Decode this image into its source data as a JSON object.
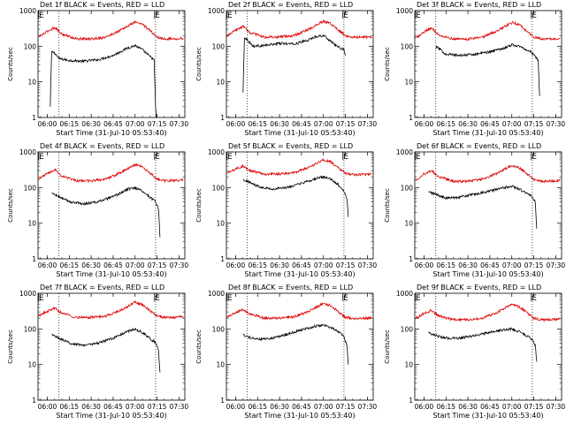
{
  "colors": {
    "events": "#000000",
    "lld": "#dd0000",
    "axis": "#000000",
    "background": "#ffffff"
  },
  "chart_data": [
    {
      "type": "line",
      "title": "Det 1f BLACK = Events, RED = LLD",
      "xlabel": "Start Time (31-Jul-10 05:53:40)",
      "ylabel": "Counts/sec",
      "xlim": [
        "05:53:40",
        "07:34"
      ],
      "ylim": [
        1,
        1000
      ],
      "yscale": "log",
      "xticks": [
        "06:00",
        "06:15",
        "06:30",
        "06:45",
        "07:00",
        "07:15",
        "07:30"
      ],
      "yticks": [
        "1",
        "10",
        "100",
        "1000"
      ],
      "marker_label": "E",
      "marker_times": [
        "05:53:40",
        "07:13"
      ],
      "vlines": [
        "06:08",
        "07:14"
      ],
      "grid": false,
      "series": [
        {
          "name": "Events",
          "color": "#000000",
          "x": [
            "06:02",
            "06:03",
            "06:05",
            "06:08",
            "06:15",
            "06:25",
            "06:35",
            "06:45",
            "06:55",
            "07:00",
            "07:05",
            "07:10",
            "07:12",
            "07:13",
            "07:14",
            "07:14:30"
          ],
          "y": [
            2,
            70,
            65,
            45,
            40,
            38,
            42,
            55,
            90,
            105,
            80,
            52,
            45,
            40,
            2,
            1
          ]
        },
        {
          "name": "LLD",
          "color": "#dd0000",
          "x": [
            "05:54",
            "06:00",
            "06:05",
            "06:10",
            "06:20",
            "06:30",
            "06:40",
            "06:50",
            "07:00",
            "07:05",
            "07:10",
            "07:15",
            "07:20",
            "07:30",
            "07:33"
          ],
          "y": [
            180,
            260,
            340,
            220,
            160,
            160,
            180,
            280,
            480,
            420,
            280,
            180,
            160,
            165,
            170
          ]
        }
      ]
    },
    {
      "type": "line",
      "title": "Det 2f BLACK = Events, RED = LLD",
      "xlabel": "Start Time (31-Jul-10 05:53:40)",
      "ylabel": "Counts/sec",
      "xlim": [
        "05:53:40",
        "07:34"
      ],
      "ylim": [
        1,
        1000
      ],
      "yscale": "log",
      "xticks": [
        "06:00",
        "06:15",
        "06:30",
        "06:45",
        "07:00",
        "07:15",
        "07:30"
      ],
      "yticks": [
        "1",
        "10",
        "100",
        "1000"
      ],
      "marker_label": "E",
      "marker_times": [
        "05:53:40",
        "07:13"
      ],
      "vlines": [
        "06:08",
        "07:14"
      ],
      "grid": false,
      "series": [
        {
          "name": "Events",
          "color": "#000000",
          "x": [
            "06:05",
            "06:06",
            "06:08",
            "06:12",
            "06:20",
            "06:30",
            "06:40",
            "06:50",
            "06:55",
            "07:00",
            "07:05",
            "07:10",
            "07:14",
            "07:15"
          ],
          "y": [
            5,
            180,
            150,
            100,
            105,
            120,
            115,
            150,
            190,
            200,
            140,
            95,
            80,
            55
          ]
        },
        {
          "name": "LLD",
          "color": "#dd0000",
          "x": [
            "05:54",
            "06:00",
            "06:05",
            "06:10",
            "06:20",
            "06:30",
            "06:40",
            "06:50",
            "07:00",
            "07:05",
            "07:10",
            "07:15",
            "07:20",
            "07:30",
            "07:33"
          ],
          "y": [
            190,
            280,
            360,
            240,
            180,
            180,
            200,
            300,
            500,
            430,
            290,
            200,
            180,
            180,
            180
          ]
        }
      ]
    },
    {
      "type": "line",
      "title": "Det 3f BLACK = Events, RED = LLD",
      "xlabel": "Start Time (31-Jul-10 05:53:40)",
      "ylabel": "Counts/sec",
      "xlim": [
        "05:53:40",
        "07:34"
      ],
      "ylim": [
        1,
        1000
      ],
      "yscale": "log",
      "xticks": [
        "06:00",
        "06:15",
        "06:30",
        "06:45",
        "07:00",
        "07:15",
        "07:30"
      ],
      "yticks": [
        "1",
        "10",
        "100",
        "1000"
      ],
      "marker_label": "E",
      "marker_times": [
        "05:53:40",
        "07:13"
      ],
      "vlines": [
        "06:08",
        "07:14"
      ],
      "grid": false,
      "series": [
        {
          "name": "Events",
          "color": "#000000",
          "x": [
            "06:08",
            "06:15",
            "06:25",
            "06:35",
            "06:45",
            "06:55",
            "07:00",
            "07:05",
            "07:10",
            "07:15",
            "07:18",
            "07:19"
          ],
          "y": [
            100,
            60,
            55,
            60,
            70,
            90,
            110,
            100,
            80,
            60,
            40,
            4
          ]
        },
        {
          "name": "LLD",
          "color": "#dd0000",
          "x": [
            "05:54",
            "06:00",
            "06:05",
            "06:10",
            "06:20",
            "06:30",
            "06:40",
            "06:50",
            "07:00",
            "07:05",
            "07:10",
            "07:15",
            "07:20",
            "07:30",
            "07:33"
          ],
          "y": [
            170,
            250,
            330,
            210,
            160,
            160,
            180,
            270,
            460,
            400,
            270,
            180,
            160,
            165,
            170
          ]
        }
      ]
    },
    {
      "type": "line",
      "title": "Det 4f BLACK = Events, RED = LLD",
      "xlabel": "Start Time (31-Jul-10 05:53:40)",
      "ylabel": "Counts/sec",
      "xlim": [
        "05:53:40",
        "07:34"
      ],
      "ylim": [
        1,
        1000
      ],
      "yscale": "log",
      "xticks": [
        "06:00",
        "06:15",
        "06:30",
        "06:45",
        "07:00",
        "07:15",
        "07:30"
      ],
      "yticks": [
        "1",
        "10",
        "100",
        "1000"
      ],
      "marker_label": "E",
      "marker_times": [
        "05:53:40",
        "07:13"
      ],
      "vlines": [
        "06:08",
        "07:14"
      ],
      "grid": false,
      "series": [
        {
          "name": "Events",
          "color": "#000000",
          "x": [
            "06:03",
            "06:08",
            "06:15",
            "06:25",
            "06:35",
            "06:45",
            "06:55",
            "07:00",
            "07:05",
            "07:10",
            "07:14",
            "07:16",
            "07:17"
          ],
          "y": [
            70,
            55,
            40,
            35,
            40,
            55,
            90,
            100,
            80,
            55,
            40,
            25,
            4
          ]
        },
        {
          "name": "LLD",
          "color": "#dd0000",
          "x": [
            "05:54",
            "06:00",
            "06:05",
            "06:10",
            "06:20",
            "06:30",
            "06:40",
            "06:50",
            "07:00",
            "07:05",
            "07:10",
            "07:15",
            "07:20",
            "07:30",
            "07:33"
          ],
          "y": [
            170,
            250,
            320,
            210,
            155,
            155,
            175,
            260,
            440,
            380,
            260,
            175,
            155,
            160,
            165
          ]
        }
      ]
    },
    {
      "type": "line",
      "title": "Det 5f BLACK = Events, RED = LLD",
      "xlabel": "Start Time (31-Jul-10 05:53:40)",
      "ylabel": "Counts/sec",
      "xlim": [
        "05:53:40",
        "07:34"
      ],
      "ylim": [
        1,
        1000
      ],
      "yscale": "log",
      "xticks": [
        "06:00",
        "06:15",
        "06:30",
        "06:45",
        "07:00",
        "07:15",
        "07:30"
      ],
      "yticks": [
        "1",
        "10",
        "100",
        "1000"
      ],
      "marker_label": "E",
      "marker_times": [
        "05:53:40",
        "07:13"
      ],
      "vlines": [
        "06:08",
        "07:14"
      ],
      "grid": false,
      "series": [
        {
          "name": "Events",
          "color": "#000000",
          "x": [
            "06:05",
            "06:08",
            "06:15",
            "06:25",
            "06:35",
            "06:45",
            "06:55",
            "07:00",
            "07:05",
            "07:10",
            "07:14",
            "07:16",
            "07:17"
          ],
          "y": [
            170,
            150,
            110,
            90,
            100,
            130,
            180,
            200,
            170,
            120,
            80,
            50,
            15
          ]
        },
        {
          "name": "LLD",
          "color": "#dd0000",
          "x": [
            "05:54",
            "06:00",
            "06:05",
            "06:10",
            "06:20",
            "06:30",
            "06:40",
            "06:50",
            "07:00",
            "07:05",
            "07:10",
            "07:15",
            "07:20",
            "07:30",
            "07:33"
          ],
          "y": [
            250,
            330,
            400,
            300,
            240,
            240,
            260,
            370,
            600,
            520,
            360,
            250,
            230,
            235,
            240
          ]
        }
      ]
    },
    {
      "type": "line",
      "title": "Det 6f BLACK = Events, RED = LLD",
      "xlabel": "Start Time (31-Jul-10 05:53:40)",
      "ylabel": "Counts/sec",
      "xlim": [
        "05:53:40",
        "07:34"
      ],
      "ylim": [
        1,
        1000
      ],
      "yscale": "log",
      "xticks": [
        "06:00",
        "06:15",
        "06:30",
        "06:45",
        "07:00",
        "07:15",
        "07:30"
      ],
      "yticks": [
        "1",
        "10",
        "100",
        "1000"
      ],
      "marker_label": "E",
      "marker_times": [
        "05:53:40",
        "07:13"
      ],
      "vlines": [
        "06:08",
        "07:14"
      ],
      "grid": false,
      "series": [
        {
          "name": "Events",
          "color": "#000000",
          "x": [
            "06:03",
            "06:08",
            "06:15",
            "06:25",
            "06:35",
            "06:45",
            "06:55",
            "07:00",
            "07:05",
            "07:10",
            "07:14",
            "07:16",
            "07:17"
          ],
          "y": [
            75,
            65,
            50,
            55,
            65,
            80,
            100,
            110,
            90,
            70,
            55,
            40,
            7
          ]
        },
        {
          "name": "LLD",
          "color": "#dd0000",
          "x": [
            "05:54",
            "06:00",
            "06:05",
            "06:10",
            "06:20",
            "06:30",
            "06:40",
            "06:50",
            "07:00",
            "07:05",
            "07:10",
            "07:15",
            "07:20",
            "07:30",
            "07:33"
          ],
          "y": [
            160,
            240,
            300,
            200,
            150,
            150,
            170,
            250,
            420,
            360,
            250,
            170,
            150,
            155,
            160
          ]
        }
      ]
    },
    {
      "type": "line",
      "title": "Det 7f BLACK = Events, RED = LLD",
      "xlabel": "Start Time (31-Jul-10 05:53:40)",
      "ylabel": "Counts/sec",
      "xlim": [
        "05:53:40",
        "07:34"
      ],
      "ylim": [
        1,
        1000
      ],
      "yscale": "log",
      "xticks": [
        "06:00",
        "06:15",
        "06:30",
        "06:45",
        "07:00",
        "07:15",
        "07:30"
      ],
      "yticks": [
        "1",
        "10",
        "100",
        "1000"
      ],
      "marker_label": "E",
      "marker_times": [
        "05:53:40",
        "07:13"
      ],
      "vlines": [
        "06:08",
        "07:14"
      ],
      "grid": false,
      "series": [
        {
          "name": "Events",
          "color": "#000000",
          "x": [
            "06:03",
            "06:08",
            "06:15",
            "06:25",
            "06:35",
            "06:45",
            "06:55",
            "07:00",
            "07:05",
            "07:10",
            "07:14",
            "07:16",
            "07:17"
          ],
          "y": [
            70,
            55,
            40,
            35,
            40,
            55,
            85,
            100,
            80,
            55,
            40,
            25,
            6
          ]
        },
        {
          "name": "LLD",
          "color": "#dd0000",
          "x": [
            "05:54",
            "06:00",
            "06:05",
            "06:10",
            "06:20",
            "06:30",
            "06:40",
            "06:50",
            "07:00",
            "07:05",
            "07:10",
            "07:15",
            "07:20",
            "07:30",
            "07:33"
          ],
          "y": [
            230,
            310,
            380,
            280,
            210,
            210,
            230,
            330,
            560,
            480,
            330,
            230,
            210,
            215,
            220
          ]
        }
      ]
    },
    {
      "type": "line",
      "title": "Det 8f BLACK = Events, RED = LLD",
      "xlabel": "Start Time (31-Jul-10 05:53:40)",
      "ylabel": "Counts/sec",
      "xlim": [
        "05:53:40",
        "07:34"
      ],
      "ylim": [
        1,
        1000
      ],
      "yscale": "log",
      "xticks": [
        "06:00",
        "06:15",
        "06:30",
        "06:45",
        "07:00",
        "07:15",
        "07:30"
      ],
      "yticks": [
        "1",
        "10",
        "100",
        "1000"
      ],
      "marker_label": "E",
      "marker_times": [
        "05:53:40",
        "07:13"
      ],
      "vlines": [
        "06:08",
        "07:14"
      ],
      "grid": false,
      "series": [
        {
          "name": "Events",
          "color": "#000000",
          "x": [
            "06:05",
            "06:08",
            "06:15",
            "06:25",
            "06:35",
            "06:45",
            "06:55",
            "07:00",
            "07:05",
            "07:10",
            "07:14",
            "07:16",
            "07:17"
          ],
          "y": [
            70,
            60,
            50,
            55,
            70,
            95,
            120,
            130,
            110,
            85,
            60,
            35,
            10
          ]
        },
        {
          "name": "LLD",
          "color": "#dd0000",
          "x": [
            "05:54",
            "06:00",
            "06:05",
            "06:10",
            "06:20",
            "06:30",
            "06:40",
            "06:50",
            "07:00",
            "07:05",
            "07:10",
            "07:15",
            "07:20",
            "07:30",
            "07:33"
          ],
          "y": [
            210,
            290,
            350,
            260,
            200,
            200,
            220,
            310,
            520,
            450,
            310,
            210,
            195,
            200,
            205
          ]
        }
      ]
    },
    {
      "type": "line",
      "title": "Det 9f BLACK = Events, RED = LLD",
      "xlabel": "Start Time (31-Jul-10 05:53:40)",
      "ylabel": "Counts/sec",
      "xlim": [
        "05:53:40",
        "07:34"
      ],
      "ylim": [
        1,
        1000
      ],
      "yscale": "log",
      "xticks": [
        "06:00",
        "06:15",
        "06:30",
        "06:45",
        "07:00",
        "07:15",
        "07:30"
      ],
      "yticks": [
        "1",
        "10",
        "100",
        "1000"
      ],
      "marker_label": "E",
      "marker_times": [
        "05:53:40",
        "07:13"
      ],
      "vlines": [
        "06:08",
        "07:14"
      ],
      "grid": false,
      "series": [
        {
          "name": "Events",
          "color": "#000000",
          "x": [
            "06:03",
            "06:08",
            "06:15",
            "06:25",
            "06:35",
            "06:45",
            "06:55",
            "07:00",
            "07:05",
            "07:10",
            "07:14",
            "07:16",
            "07:17"
          ],
          "y": [
            80,
            65,
            55,
            55,
            65,
            80,
            95,
            100,
            85,
            65,
            50,
            35,
            12
          ]
        },
        {
          "name": "LLD",
          "color": "#dd0000",
          "x": [
            "05:54",
            "06:00",
            "06:05",
            "06:10",
            "06:20",
            "06:30",
            "06:40",
            "06:50",
            "07:00",
            "07:05",
            "07:10",
            "07:15",
            "07:20",
            "07:30",
            "07:33"
          ],
          "y": [
            190,
            270,
            330,
            230,
            180,
            180,
            200,
            290,
            480,
            420,
            290,
            195,
            180,
            185,
            190
          ]
        }
      ]
    }
  ]
}
